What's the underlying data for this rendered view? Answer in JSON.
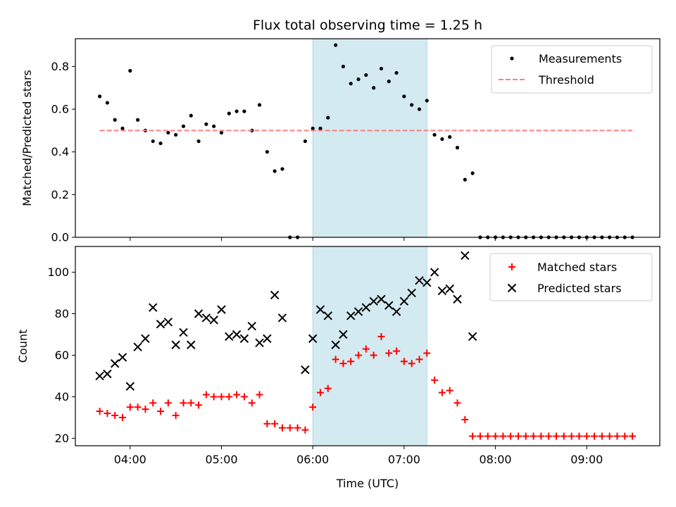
{
  "chart_data": [
    {
      "type": "scatter",
      "title": "Flux total observing time = 1.25 h",
      "ylabel": "Matched/Predicted stars",
      "xlabel": "",
      "xlim": [
        "03:24",
        "09:48"
      ],
      "ylim": [
        0,
        0.93
      ],
      "x_ticks": [
        "04:00",
        "05:00",
        "06:00",
        "07:00",
        "08:00",
        "09:00"
      ],
      "x_tick_labels_shown": false,
      "y_ticks": [
        0.0,
        0.2,
        0.4,
        0.6,
        0.8
      ],
      "y_tick_labels": [
        "0.0",
        "0.2",
        "0.4",
        "0.6",
        "0.8"
      ],
      "highlight_span": {
        "x_start": "06:00",
        "x_end": "07:15",
        "color": "#d3eaf0"
      },
      "legend": {
        "placement": "upper right",
        "entries": [
          "Measurements",
          "Threshold"
        ]
      },
      "series": [
        {
          "name": "Measurements",
          "marker": "dot",
          "color": "#000000",
          "points": [
            [
              "03:40",
              0.66
            ],
            [
              "03:45",
              0.63
            ],
            [
              "03:50",
              0.55
            ],
            [
              "03:55",
              0.51
            ],
            [
              "04:00",
              0.78
            ],
            [
              "04:05",
              0.55
            ],
            [
              "04:10",
              0.5
            ],
            [
              "04:15",
              0.45
            ],
            [
              "04:20",
              0.44
            ],
            [
              "04:25",
              0.49
            ],
            [
              "04:30",
              0.48
            ],
            [
              "04:35",
              0.52
            ],
            [
              "04:40",
              0.57
            ],
            [
              "04:45",
              0.45
            ],
            [
              "04:50",
              0.53
            ],
            [
              "04:55",
              0.52
            ],
            [
              "05:00",
              0.49
            ],
            [
              "05:05",
              0.58
            ],
            [
              "05:10",
              0.59
            ],
            [
              "05:15",
              0.59
            ],
            [
              "05:20",
              0.5
            ],
            [
              "05:25",
              0.62
            ],
            [
              "05:30",
              0.4
            ],
            [
              "05:35",
              0.31
            ],
            [
              "05:40",
              0.32
            ],
            [
              "05:45",
              0.0
            ],
            [
              "05:50",
              0.0
            ],
            [
              "05:55",
              0.45
            ],
            [
              "06:00",
              0.51
            ],
            [
              "06:05",
              0.51
            ],
            [
              "06:10",
              0.56
            ],
            [
              "06:15",
              0.9
            ],
            [
              "06:20",
              0.8
            ],
            [
              "06:25",
              0.72
            ],
            [
              "06:30",
              0.74
            ],
            [
              "06:35",
              0.76
            ],
            [
              "06:40",
              0.7
            ],
            [
              "06:45",
              0.79
            ],
            [
              "06:50",
              0.73
            ],
            [
              "06:55",
              0.77
            ],
            [
              "07:00",
              0.66
            ],
            [
              "07:05",
              0.62
            ],
            [
              "07:10",
              0.6
            ],
            [
              "07:15",
              0.64
            ],
            [
              "07:20",
              0.48
            ],
            [
              "07:25",
              0.46
            ],
            [
              "07:30",
              0.47
            ],
            [
              "07:35",
              0.42
            ],
            [
              "07:40",
              0.27
            ],
            [
              "07:45",
              0.3
            ],
            [
              "07:50",
              0.0
            ],
            [
              "07:55",
              0.0
            ],
            [
              "08:00",
              0.0
            ],
            [
              "08:05",
              0.0
            ],
            [
              "08:10",
              0.0
            ],
            [
              "08:15",
              0.0
            ],
            [
              "08:20",
              0.0
            ],
            [
              "08:25",
              0.0
            ],
            [
              "08:30",
              0.0
            ],
            [
              "08:35",
              0.0
            ],
            [
              "08:40",
              0.0
            ],
            [
              "08:45",
              0.0
            ],
            [
              "08:50",
              0.0
            ],
            [
              "08:55",
              0.0
            ],
            [
              "09:00",
              0.0
            ],
            [
              "09:05",
              0.0
            ],
            [
              "09:10",
              0.0
            ],
            [
              "09:15",
              0.0
            ],
            [
              "09:20",
              0.0
            ],
            [
              "09:25",
              0.0
            ],
            [
              "09:30",
              0.0
            ]
          ]
        },
        {
          "name": "Threshold",
          "marker": "dashed-line",
          "color": "#ff7f7f",
          "points": [
            [
              "03:40",
              0.5
            ],
            [
              "09:30",
              0.5
            ]
          ]
        }
      ]
    },
    {
      "type": "scatter",
      "title": "",
      "ylabel": "Count",
      "xlabel": "Time (UTC)",
      "xlim": [
        "03:24",
        "09:48"
      ],
      "ylim": [
        16.4,
        112.4
      ],
      "x_ticks": [
        "04:00",
        "05:00",
        "06:00",
        "07:00",
        "08:00",
        "09:00"
      ],
      "x_tick_labels": [
        "04:00",
        "05:00",
        "06:00",
        "07:00",
        "08:00",
        "09:00"
      ],
      "y_ticks": [
        20,
        40,
        60,
        80,
        100
      ],
      "y_tick_labels": [
        "20",
        "40",
        "60",
        "80",
        "100"
      ],
      "highlight_span": {
        "x_start": "06:00",
        "x_end": "07:15",
        "color": "#d3eaf0"
      },
      "legend": {
        "placement": "upper right",
        "entries": [
          "Matched stars",
          "Predicted stars"
        ]
      },
      "series": [
        {
          "name": "Matched stars",
          "marker": "plus",
          "color": "#ff0000",
          "points": [
            [
              "03:40",
              33
            ],
            [
              "03:45",
              32
            ],
            [
              "03:50",
              31
            ],
            [
              "03:55",
              30
            ],
            [
              "04:00",
              35
            ],
            [
              "04:05",
              35
            ],
            [
              "04:10",
              34
            ],
            [
              "04:15",
              37
            ],
            [
              "04:20",
              33
            ],
            [
              "04:25",
              37
            ],
            [
              "04:30",
              31
            ],
            [
              "04:35",
              37
            ],
            [
              "04:40",
              37
            ],
            [
              "04:45",
              36
            ],
            [
              "04:50",
              41
            ],
            [
              "04:55",
              40
            ],
            [
              "05:00",
              40
            ],
            [
              "05:05",
              40
            ],
            [
              "05:10",
              41
            ],
            [
              "05:15",
              40
            ],
            [
              "05:20",
              37
            ],
            [
              "05:25",
              41
            ],
            [
              "05:30",
              27
            ],
            [
              "05:35",
              27
            ],
            [
              "05:40",
              25
            ],
            [
              "05:45",
              25
            ],
            [
              "05:50",
              25
            ],
            [
              "05:55",
              24
            ],
            [
              "06:00",
              35
            ],
            [
              "06:05",
              42
            ],
            [
              "06:10",
              44
            ],
            [
              "06:15",
              58
            ],
            [
              "06:20",
              56
            ],
            [
              "06:25",
              57
            ],
            [
              "06:30",
              60
            ],
            [
              "06:35",
              63
            ],
            [
              "06:40",
              60
            ],
            [
              "06:45",
              69
            ],
            [
              "06:50",
              61
            ],
            [
              "06:55",
              62
            ],
            [
              "07:00",
              57
            ],
            [
              "07:05",
              56
            ],
            [
              "07:10",
              58
            ],
            [
              "07:15",
              61
            ],
            [
              "07:20",
              48
            ],
            [
              "07:25",
              42
            ],
            [
              "07:30",
              43
            ],
            [
              "07:35",
              37
            ],
            [
              "07:40",
              29
            ],
            [
              "07:45",
              21
            ],
            [
              "07:50",
              21
            ],
            [
              "07:55",
              21
            ],
            [
              "08:00",
              21
            ],
            [
              "08:05",
              21
            ],
            [
              "08:10",
              21
            ],
            [
              "08:15",
              21
            ],
            [
              "08:20",
              21
            ],
            [
              "08:25",
              21
            ],
            [
              "08:30",
              21
            ],
            [
              "08:35",
              21
            ],
            [
              "08:40",
              21
            ],
            [
              "08:45",
              21
            ],
            [
              "08:50",
              21
            ],
            [
              "08:55",
              21
            ],
            [
              "09:00",
              21
            ],
            [
              "09:05",
              21
            ],
            [
              "09:10",
              21
            ],
            [
              "09:15",
              21
            ],
            [
              "09:20",
              21
            ],
            [
              "09:25",
              21
            ],
            [
              "09:30",
              21
            ]
          ]
        },
        {
          "name": "Predicted stars",
          "marker": "x",
          "color": "#000000",
          "points": [
            [
              "03:40",
              50
            ],
            [
              "03:45",
              51
            ],
            [
              "03:50",
              56
            ],
            [
              "03:55",
              59
            ],
            [
              "04:00",
              45
            ],
            [
              "04:05",
              64
            ],
            [
              "04:10",
              68
            ],
            [
              "04:15",
              83
            ],
            [
              "04:20",
              75
            ],
            [
              "04:25",
              76
            ],
            [
              "04:30",
              65
            ],
            [
              "04:35",
              71
            ],
            [
              "04:40",
              65
            ],
            [
              "04:45",
              80
            ],
            [
              "04:50",
              78
            ],
            [
              "04:55",
              77
            ],
            [
              "05:00",
              82
            ],
            [
              "05:05",
              69
            ],
            [
              "05:10",
              70
            ],
            [
              "05:15",
              68
            ],
            [
              "05:20",
              74
            ],
            [
              "05:25",
              66
            ],
            [
              "05:30",
              68
            ],
            [
              "05:35",
              89
            ],
            [
              "05:40",
              78
            ],
            [
              "05:55",
              53
            ],
            [
              "06:00",
              68
            ],
            [
              "06:05",
              82
            ],
            [
              "06:10",
              79
            ],
            [
              "06:15",
              65
            ],
            [
              "06:20",
              70
            ],
            [
              "06:25",
              79
            ],
            [
              "06:30",
              81
            ],
            [
              "06:35",
              83
            ],
            [
              "06:40",
              86
            ],
            [
              "06:45",
              87
            ],
            [
              "06:50",
              84
            ],
            [
              "06:55",
              81
            ],
            [
              "07:00",
              86
            ],
            [
              "07:05",
              90
            ],
            [
              "07:10",
              96
            ],
            [
              "07:15",
              95
            ],
            [
              "07:20",
              100
            ],
            [
              "07:25",
              91
            ],
            [
              "07:30",
              92
            ],
            [
              "07:35",
              87
            ],
            [
              "07:40",
              108
            ],
            [
              "07:45",
              69
            ]
          ]
        }
      ]
    }
  ]
}
